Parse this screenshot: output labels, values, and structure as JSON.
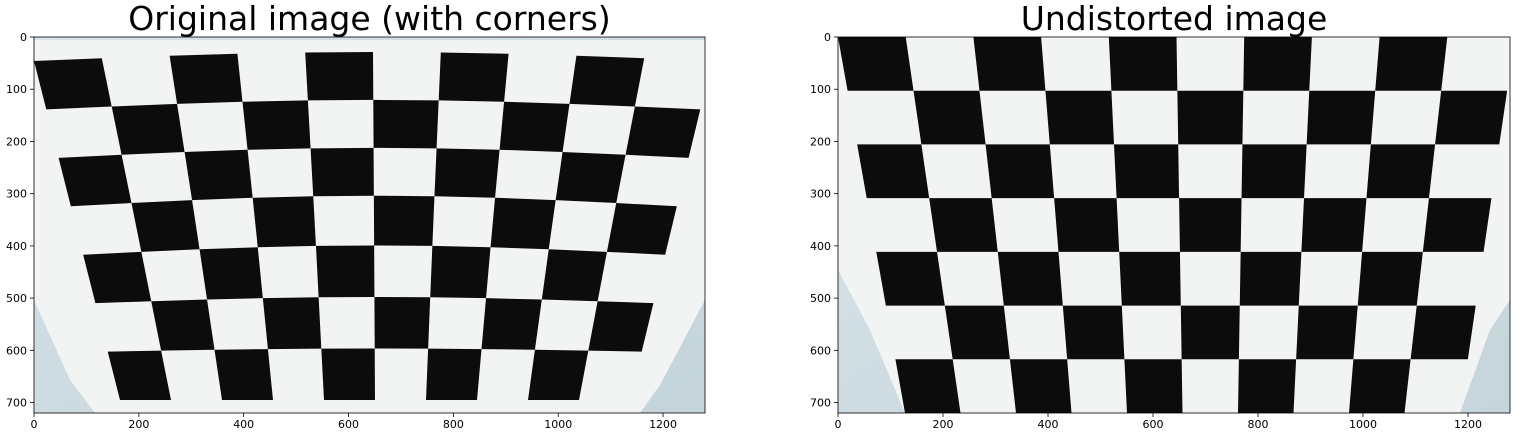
{
  "panels": [
    {
      "title": "Original image (with corners)",
      "xticks": [
        "0",
        "200",
        "400",
        "600",
        "800",
        "1000",
        "1200"
      ],
      "yticks": [
        "0",
        "100",
        "200",
        "300",
        "400",
        "500",
        "600",
        "700"
      ],
      "image_subject": "checkerboard-calibration-photo-distorted"
    },
    {
      "title": "Undistorted image",
      "xticks": [
        "0",
        "200",
        "400",
        "600",
        "800",
        "1000",
        "1200"
      ],
      "yticks": [
        "0",
        "100",
        "200",
        "300",
        "400",
        "500",
        "600",
        "700"
      ],
      "image_subject": "checkerboard-calibration-photo-undistorted"
    }
  ],
  "colors": {
    "square_dark": "#0c0c0c",
    "paper": "#f2f3f3",
    "wall": "#cfdde2"
  }
}
